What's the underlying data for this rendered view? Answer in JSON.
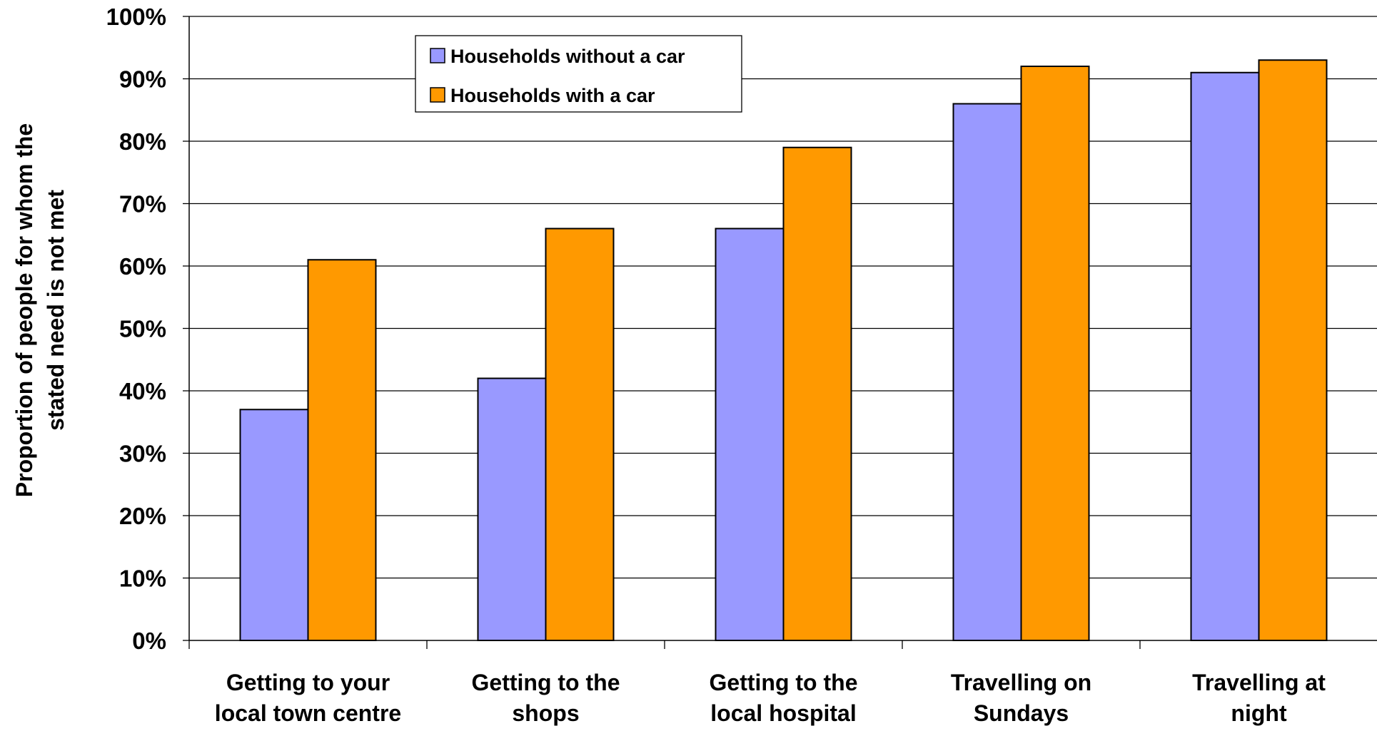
{
  "chart_data": {
    "type": "bar",
    "categories": [
      [
        "Getting to your",
        "local town centre"
      ],
      [
        "Getting to the",
        "shops"
      ],
      [
        "Getting to the",
        "local hospital"
      ],
      [
        "Travelling on",
        "Sundays"
      ],
      [
        "Travelling at",
        "night"
      ]
    ],
    "series": [
      {
        "name": "Households without a car",
        "color": "#9999FF",
        "values": [
          37,
          42,
          66,
          86,
          91
        ]
      },
      {
        "name": "Households with a car",
        "color": "#FF9900",
        "values": [
          61,
          66,
          79,
          92,
          93
        ]
      }
    ],
    "ylabel": [
      "Proportion of people for whom the",
      "stated need is not met"
    ],
    "ylim": [
      0,
      100
    ],
    "yticks": [
      "0%",
      "10%",
      "20%",
      "30%",
      "40%",
      "50%",
      "60%",
      "70%",
      "80%",
      "90%",
      "100%"
    ],
    "grid": true,
    "legend_position": "top-center"
  }
}
